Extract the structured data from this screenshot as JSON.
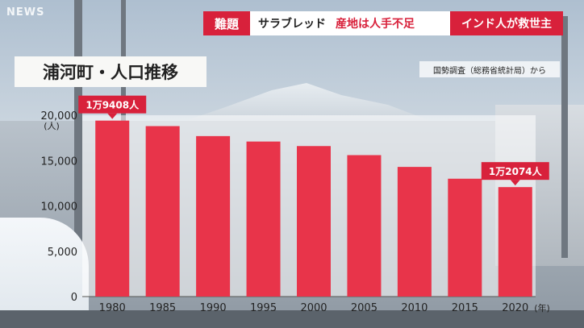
{
  "header": {
    "logo": "NEWS",
    "badge": "難題",
    "headline_part1": "サラブレッド",
    "headline_part2": "産地は人手不足",
    "headline_part3": "インド人が救世主"
  },
  "source_note": "国勢調査（総務省統計局）から",
  "colors": {
    "bar": "#e8344a",
    "accent": "#d8213b"
  },
  "chart_data": {
    "type": "bar",
    "title": "浦河町・人口推移",
    "categories": [
      "1980",
      "1985",
      "1990",
      "1995",
      "2000",
      "2005",
      "2010",
      "2015",
      "2020"
    ],
    "values": [
      19408,
      18800,
      17700,
      17100,
      16600,
      15600,
      14300,
      13000,
      12074
    ],
    "y_unit": "(人)",
    "x_unit": "(年)",
    "ylim": [
      0,
      20000
    ],
    "yticks": [
      0,
      5000,
      10000,
      15000,
      20000
    ],
    "ytick_labels": [
      "0",
      "5,000",
      "10,000",
      "15,000",
      "20,000"
    ],
    "grid": false,
    "annotations": [
      {
        "category": "1980",
        "text": "1万9408人"
      },
      {
        "category": "2020",
        "text": "1万2074人"
      }
    ]
  }
}
